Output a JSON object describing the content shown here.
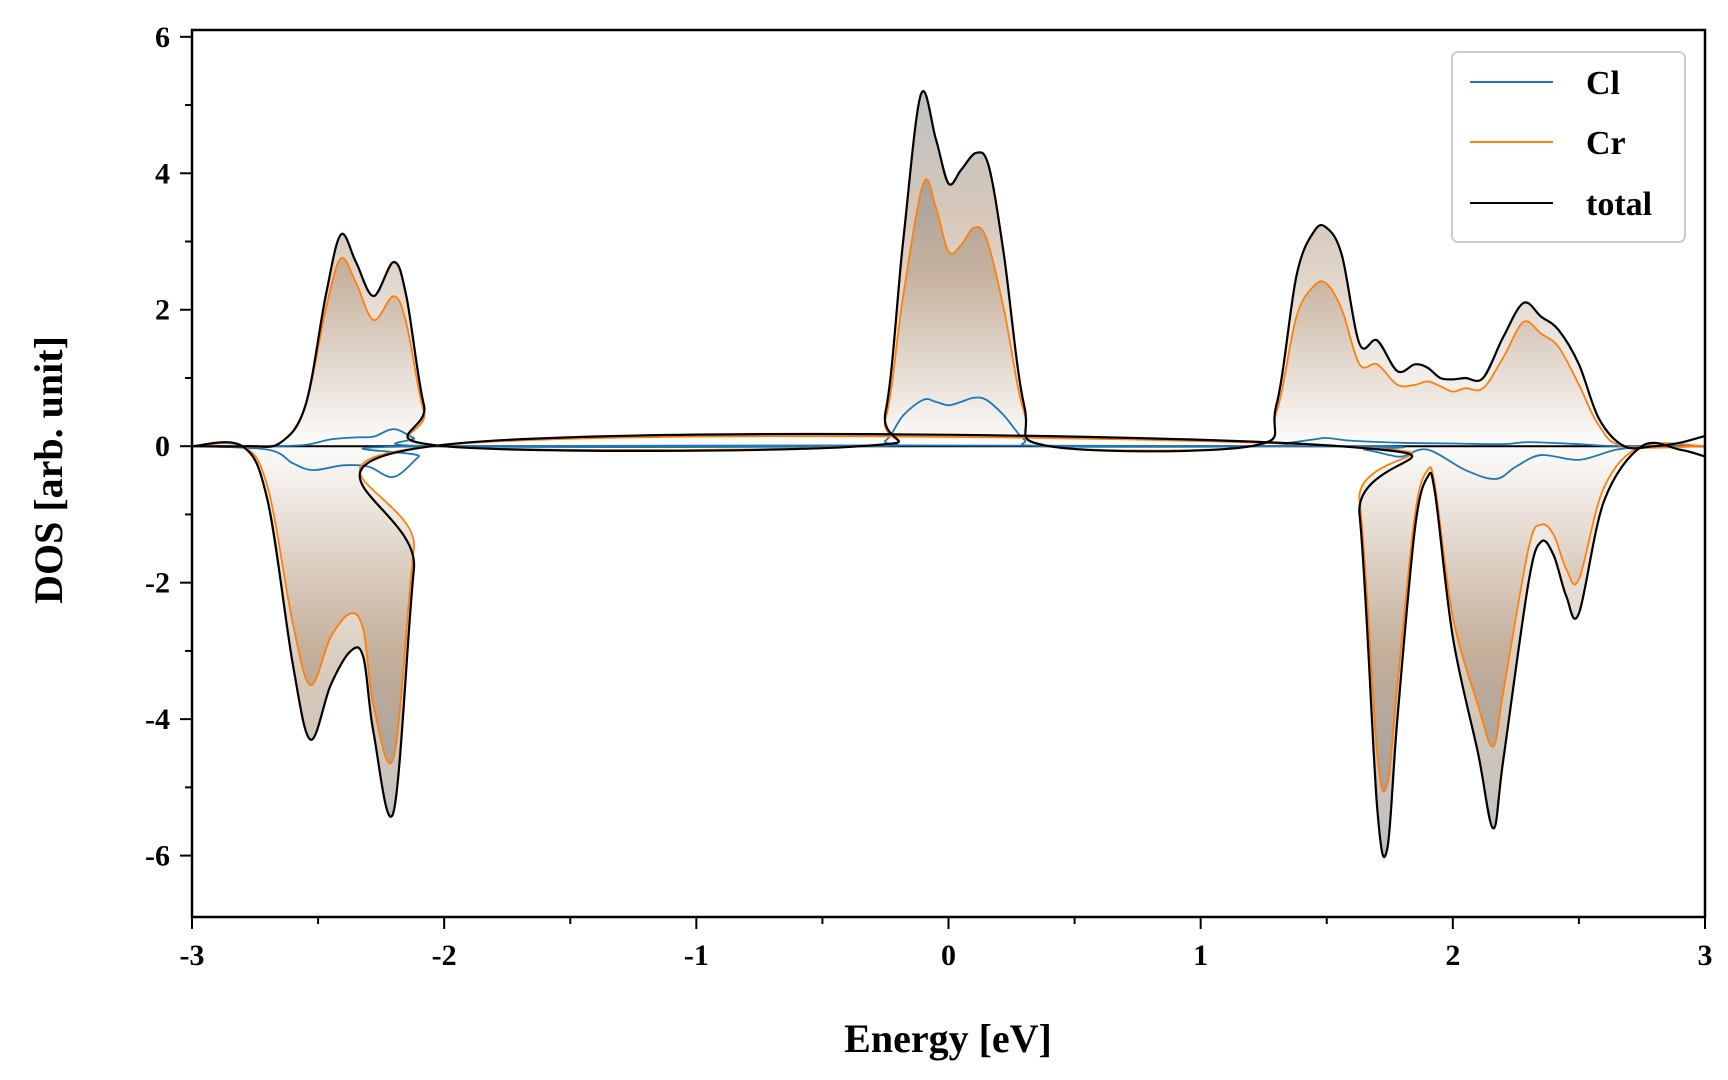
{
  "chart_data": {
    "type": "line",
    "xlabel": "Energy [eV]",
    "ylabel": "DOS [arb. unit]",
    "xlim": [
      -3,
      3
    ],
    "ylim": [
      -6.9,
      6.1
    ],
    "xticks": [
      -3,
      -2,
      -1,
      0,
      1,
      2,
      3
    ],
    "yticks": [
      -6,
      -4,
      -2,
      0,
      2,
      4,
      6
    ],
    "x_minor_step": 0.5,
    "y_minor_step": 1,
    "grid": false,
    "legend_position": "top-right",
    "fill": "gradient from dark grey/brown near peaks to white at zero, between curves and zero",
    "series": [
      {
        "name": "Cl",
        "color": "#1f77b4",
        "points": [
          [
            -3.0,
            0
          ],
          [
            -2.7,
            0
          ],
          [
            -2.55,
            0.02
          ],
          [
            -2.45,
            0.1
          ],
          [
            -2.35,
            0.13
          ],
          [
            -2.28,
            0.14
          ],
          [
            -2.2,
            0.25
          ],
          [
            -2.12,
            0.12
          ],
          [
            -2.05,
            0
          ],
          [
            -0.35,
            0
          ],
          [
            -0.25,
            0.08
          ],
          [
            -0.18,
            0.45
          ],
          [
            -0.1,
            0.68
          ],
          [
            -0.05,
            0.65
          ],
          [
            0.0,
            0.6
          ],
          [
            0.05,
            0.65
          ],
          [
            0.1,
            0.71
          ],
          [
            0.15,
            0.68
          ],
          [
            0.22,
            0.45
          ],
          [
            0.3,
            0.1
          ],
          [
            0.38,
            0
          ],
          [
            1.25,
            0
          ],
          [
            1.35,
            0.05
          ],
          [
            1.45,
            0.1
          ],
          [
            1.5,
            0.12
          ],
          [
            1.6,
            0.08
          ],
          [
            1.8,
            0.05
          ],
          [
            2.0,
            0.04
          ],
          [
            2.2,
            0.03
          ],
          [
            2.3,
            0.06
          ],
          [
            2.5,
            0.03
          ],
          [
            2.65,
            0
          ],
          [
            3.0,
            0
          ],
          [
            3.0,
            0
          ],
          [
            2.8,
            0
          ],
          [
            2.65,
            -0.05
          ],
          [
            2.5,
            -0.2
          ],
          [
            2.35,
            -0.13
          ],
          [
            2.25,
            -0.3
          ],
          [
            2.17,
            -0.48
          ],
          [
            2.05,
            -0.35
          ],
          [
            1.9,
            -0.05
          ],
          [
            1.8,
            -0.15
          ],
          [
            1.75,
            -0.13
          ],
          [
            1.65,
            -0.05
          ],
          [
            1.5,
            0
          ],
          [
            -2.05,
            0
          ],
          [
            -2.1,
            -0.15
          ],
          [
            -2.2,
            -0.45
          ],
          [
            -2.3,
            -0.3
          ],
          [
            -2.4,
            -0.28
          ],
          [
            -2.52,
            -0.35
          ],
          [
            -2.6,
            -0.25
          ],
          [
            -2.7,
            -0.05
          ],
          [
            -3.0,
            0
          ]
        ]
      },
      {
        "name": "Cr",
        "color": "#ff7f0e",
        "points": [
          [
            -3.0,
            0
          ],
          [
            -2.78,
            0
          ],
          [
            -2.65,
            0.05
          ],
          [
            -2.55,
            0.6
          ],
          [
            -2.47,
            2.0
          ],
          [
            -2.41,
            2.75
          ],
          [
            -2.35,
            2.4
          ],
          [
            -2.28,
            1.85
          ],
          [
            -2.2,
            2.2
          ],
          [
            -2.15,
            1.8
          ],
          [
            -2.08,
            0.5
          ],
          [
            -2.0,
            0
          ],
          [
            -0.35,
            0
          ],
          [
            -0.25,
            0.4
          ],
          [
            -0.18,
            2.2
          ],
          [
            -0.1,
            3.85
          ],
          [
            -0.05,
            3.5
          ],
          [
            0.0,
            2.85
          ],
          [
            0.05,
            2.95
          ],
          [
            0.1,
            3.2
          ],
          [
            0.15,
            3.05
          ],
          [
            0.22,
            2.0
          ],
          [
            0.3,
            0.5
          ],
          [
            0.4,
            0
          ],
          [
            1.2,
            0
          ],
          [
            1.3,
            0.5
          ],
          [
            1.38,
            1.9
          ],
          [
            1.45,
            2.35
          ],
          [
            1.5,
            2.38
          ],
          [
            1.56,
            2.0
          ],
          [
            1.63,
            1.2
          ],
          [
            1.7,
            1.2
          ],
          [
            1.78,
            0.9
          ],
          [
            1.85,
            0.9
          ],
          [
            1.9,
            0.95
          ],
          [
            1.95,
            0.88
          ],
          [
            2.0,
            0.8
          ],
          [
            2.05,
            0.85
          ],
          [
            2.12,
            0.85
          ],
          [
            2.2,
            1.3
          ],
          [
            2.28,
            1.82
          ],
          [
            2.35,
            1.65
          ],
          [
            2.42,
            1.45
          ],
          [
            2.5,
            0.9
          ],
          [
            2.58,
            0.3
          ],
          [
            2.68,
            0
          ],
          [
            3.0,
            0
          ],
          [
            3.0,
            0
          ],
          [
            2.75,
            0
          ],
          [
            2.6,
            -0.6
          ],
          [
            2.5,
            -1.95
          ],
          [
            2.45,
            -1.8
          ],
          [
            2.4,
            -1.3
          ],
          [
            2.35,
            -1.15
          ],
          [
            2.3,
            -1.5
          ],
          [
            2.2,
            -3.6
          ],
          [
            2.16,
            -4.4
          ],
          [
            2.1,
            -3.8
          ],
          [
            2.0,
            -2.5
          ],
          [
            1.93,
            -0.6
          ],
          [
            1.9,
            -0.35
          ],
          [
            1.85,
            -1.0
          ],
          [
            1.78,
            -3.5
          ],
          [
            1.74,
            -4.95
          ],
          [
            1.7,
            -4.5
          ],
          [
            1.63,
            -0.8
          ],
          [
            1.55,
            0
          ],
          [
            -2.05,
            0
          ],
          [
            -2.12,
            -1.5
          ],
          [
            -2.2,
            -4.55
          ],
          [
            -2.28,
            -3.8
          ],
          [
            -2.32,
            -2.7
          ],
          [
            -2.37,
            -2.45
          ],
          [
            -2.45,
            -2.8
          ],
          [
            -2.53,
            -3.5
          ],
          [
            -2.6,
            -2.6
          ],
          [
            -2.7,
            -0.6
          ],
          [
            -2.8,
            0
          ],
          [
            -3.0,
            0
          ]
        ]
      },
      {
        "name": "total",
        "color": "#000000",
        "points": [
          [
            -3.0,
            0
          ],
          [
            -2.78,
            0
          ],
          [
            -2.65,
            0.05
          ],
          [
            -2.55,
            0.6
          ],
          [
            -2.47,
            2.2
          ],
          [
            -2.41,
            3.1
          ],
          [
            -2.35,
            2.7
          ],
          [
            -2.28,
            2.2
          ],
          [
            -2.2,
            2.7
          ],
          [
            -2.15,
            2.2
          ],
          [
            -2.08,
            0.6
          ],
          [
            -2.0,
            0
          ],
          [
            -0.35,
            0
          ],
          [
            -0.25,
            0.5
          ],
          [
            -0.18,
            3.0
          ],
          [
            -0.11,
            5.15
          ],
          [
            -0.05,
            4.5
          ],
          [
            0.0,
            3.85
          ],
          [
            0.05,
            4.05
          ],
          [
            0.11,
            4.3
          ],
          [
            0.16,
            4.1
          ],
          [
            0.22,
            2.8
          ],
          [
            0.3,
            0.6
          ],
          [
            0.4,
            0
          ],
          [
            1.2,
            0
          ],
          [
            1.3,
            0.6
          ],
          [
            1.38,
            2.5
          ],
          [
            1.45,
            3.15
          ],
          [
            1.5,
            3.2
          ],
          [
            1.56,
            2.8
          ],
          [
            1.63,
            1.5
          ],
          [
            1.7,
            1.55
          ],
          [
            1.78,
            1.1
          ],
          [
            1.85,
            1.2
          ],
          [
            1.9,
            1.15
          ],
          [
            1.95,
            1.0
          ],
          [
            2.0,
            0.98
          ],
          [
            2.05,
            1.0
          ],
          [
            2.12,
            1.0
          ],
          [
            2.2,
            1.6
          ],
          [
            2.28,
            2.1
          ],
          [
            2.35,
            1.9
          ],
          [
            2.42,
            1.7
          ],
          [
            2.5,
            1.2
          ],
          [
            2.58,
            0.4
          ],
          [
            2.68,
            0
          ],
          [
            2.8,
            0
          ],
          [
            2.9,
            0.05
          ],
          [
            3.0,
            0.15
          ],
          [
            3.0,
            -0.15
          ],
          [
            2.9,
            -0.05
          ],
          [
            2.75,
            0
          ],
          [
            2.6,
            -0.8
          ],
          [
            2.5,
            -2.45
          ],
          [
            2.45,
            -2.2
          ],
          [
            2.4,
            -1.6
          ],
          [
            2.35,
            -1.4
          ],
          [
            2.3,
            -2.0
          ],
          [
            2.2,
            -4.6
          ],
          [
            2.16,
            -5.6
          ],
          [
            2.1,
            -4.5
          ],
          [
            2.0,
            -2.8
          ],
          [
            1.93,
            -0.7
          ],
          [
            1.9,
            -0.45
          ],
          [
            1.85,
            -1.2
          ],
          [
            1.78,
            -4.0
          ],
          [
            1.74,
            -5.9
          ],
          [
            1.7,
            -5.3
          ],
          [
            1.63,
            -1.0
          ],
          [
            1.55,
            0
          ],
          [
            -2.05,
            0
          ],
          [
            -2.12,
            -1.8
          ],
          [
            -2.2,
            -5.35
          ],
          [
            -2.28,
            -4.2
          ],
          [
            -2.32,
            -3.1
          ],
          [
            -2.37,
            -3.0
          ],
          [
            -2.45,
            -3.5
          ],
          [
            -2.53,
            -4.3
          ],
          [
            -2.6,
            -3.2
          ],
          [
            -2.7,
            -0.8
          ],
          [
            -2.8,
            0
          ],
          [
            -3.0,
            0
          ]
        ]
      }
    ]
  }
}
